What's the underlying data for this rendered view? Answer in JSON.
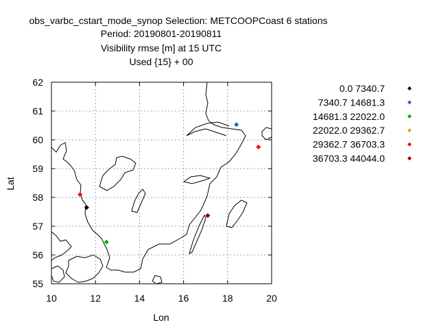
{
  "chart_data": {
    "type": "scatter",
    "title_lines": [
      "obs_varbc_cstart_mode_synop   Selection: METCOOPCoast      6 stations",
      "Period: 20190801-20190811",
      "Visibility rmse [m] at  15 UTC",
      "Used {15} + 00"
    ],
    "xlabel": "Lon",
    "ylabel": "Lat",
    "xlim": [
      10,
      20
    ],
    "ylim": [
      55,
      62
    ],
    "xticks": [
      "10",
      "12",
      "14",
      "16",
      "18",
      "20"
    ],
    "yticks": [
      "55",
      "56",
      "57",
      "58",
      "59",
      "60",
      "61",
      "62"
    ],
    "grid": true,
    "legend_position": "right",
    "series": [
      {
        "name": "0.0 7340.7",
        "color": "#000000",
        "points": [
          [
            11.6,
            57.65
          ]
        ]
      },
      {
        "name": "7340.7 14681.3",
        "color": "#2d5ee0",
        "points": [
          [
            18.4,
            60.53
          ]
        ]
      },
      {
        "name": "14681.3 22022.0",
        "color": "#00b000",
        "points": [
          [
            12.5,
            56.45
          ]
        ]
      },
      {
        "name": "22022.0 29362.7",
        "color": "#c8b400",
        "points": []
      },
      {
        "name": "29362.7 36703.3",
        "color": "#ff0000",
        "points": [
          [
            11.3,
            58.1
          ],
          [
            19.4,
            59.75
          ]
        ]
      },
      {
        "name": "36703.3 44044.0",
        "color": "#800000",
        "points": [
          [
            17.1,
            57.37
          ]
        ]
      }
    ]
  }
}
